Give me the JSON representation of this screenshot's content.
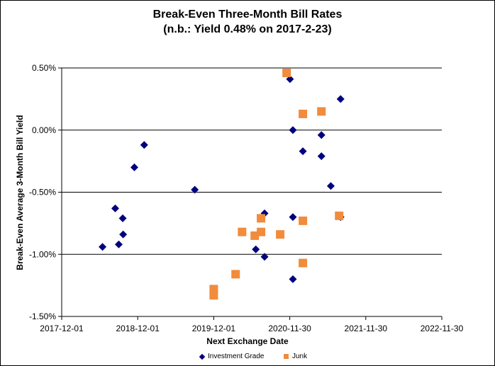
{
  "chart_data": {
    "type": "scatter",
    "title": "Break-Even Three-Month Bill Rates",
    "subtitle": "(n.b.: Yield 0.48% on 2017-2-23)",
    "xlabel": "Next Exchange Date",
    "ylabel": "Break-Even Average 3-Month Bill Yield",
    "xlim": [
      "2017-12-01",
      "2022-11-30"
    ],
    "ylim": [
      -1.5,
      0.5
    ],
    "x_ticks": [
      "2017-12-01",
      "2018-12-01",
      "2019-12-01",
      "2020-11-30",
      "2021-11-30",
      "2022-11-30"
    ],
    "y_ticks": [
      "0.50%",
      "0.00%",
      "-0.50%",
      "-1.00%",
      "-1.50%"
    ],
    "gridlines": "horizontal",
    "legend_position": "bottom",
    "series": [
      {
        "name": "Investment Grade",
        "marker": "diamond",
        "color": "#00007f",
        "points": [
          {
            "x": "2018-06-15",
            "y": -0.94
          },
          {
            "x": "2018-08-15",
            "y": -0.63
          },
          {
            "x": "2018-09-01",
            "y": -0.92
          },
          {
            "x": "2018-09-20",
            "y": -0.71
          },
          {
            "x": "2018-09-22",
            "y": -0.84
          },
          {
            "x": "2018-11-15",
            "y": -0.3
          },
          {
            "x": "2019-01-01",
            "y": -0.12
          },
          {
            "x": "2019-09-01",
            "y": -0.48
          },
          {
            "x": "2020-06-20",
            "y": -0.96
          },
          {
            "x": "2020-07-15",
            "y": -0.82
          },
          {
            "x": "2020-08-01",
            "y": -0.67
          },
          {
            "x": "2020-08-01",
            "y": -1.02
          },
          {
            "x": "2020-12-01",
            "y": 0.41
          },
          {
            "x": "2020-12-15",
            "y": 0.0
          },
          {
            "x": "2020-12-15",
            "y": -0.7
          },
          {
            "x": "2020-12-15",
            "y": -1.2
          },
          {
            "x": "2021-02-01",
            "y": -0.17
          },
          {
            "x": "2021-05-01",
            "y": -0.04
          },
          {
            "x": "2021-05-01",
            "y": -0.21
          },
          {
            "x": "2021-06-15",
            "y": -0.45
          },
          {
            "x": "2021-08-01",
            "y": 0.25
          },
          {
            "x": "2021-08-01",
            "y": -0.7
          }
        ]
      },
      {
        "name": "Junk",
        "marker": "square",
        "color": "#f08c3c",
        "points": [
          {
            "x": "2019-12-01",
            "y": -1.28
          },
          {
            "x": "2019-12-01",
            "y": -1.33
          },
          {
            "x": "2020-03-15",
            "y": -1.16
          },
          {
            "x": "2020-04-15",
            "y": -0.82
          },
          {
            "x": "2020-06-15",
            "y": -0.85
          },
          {
            "x": "2020-07-15",
            "y": -0.71
          },
          {
            "x": "2020-07-15",
            "y": -0.82
          },
          {
            "x": "2020-10-15",
            "y": -0.84
          },
          {
            "x": "2020-11-15",
            "y": 0.46
          },
          {
            "x": "2021-02-01",
            "y": 0.13
          },
          {
            "x": "2021-02-01",
            "y": -0.73
          },
          {
            "x": "2021-02-01",
            "y": -1.07
          },
          {
            "x": "2021-05-01",
            "y": 0.15
          },
          {
            "x": "2021-07-25",
            "y": -0.69
          }
        ]
      }
    ]
  }
}
